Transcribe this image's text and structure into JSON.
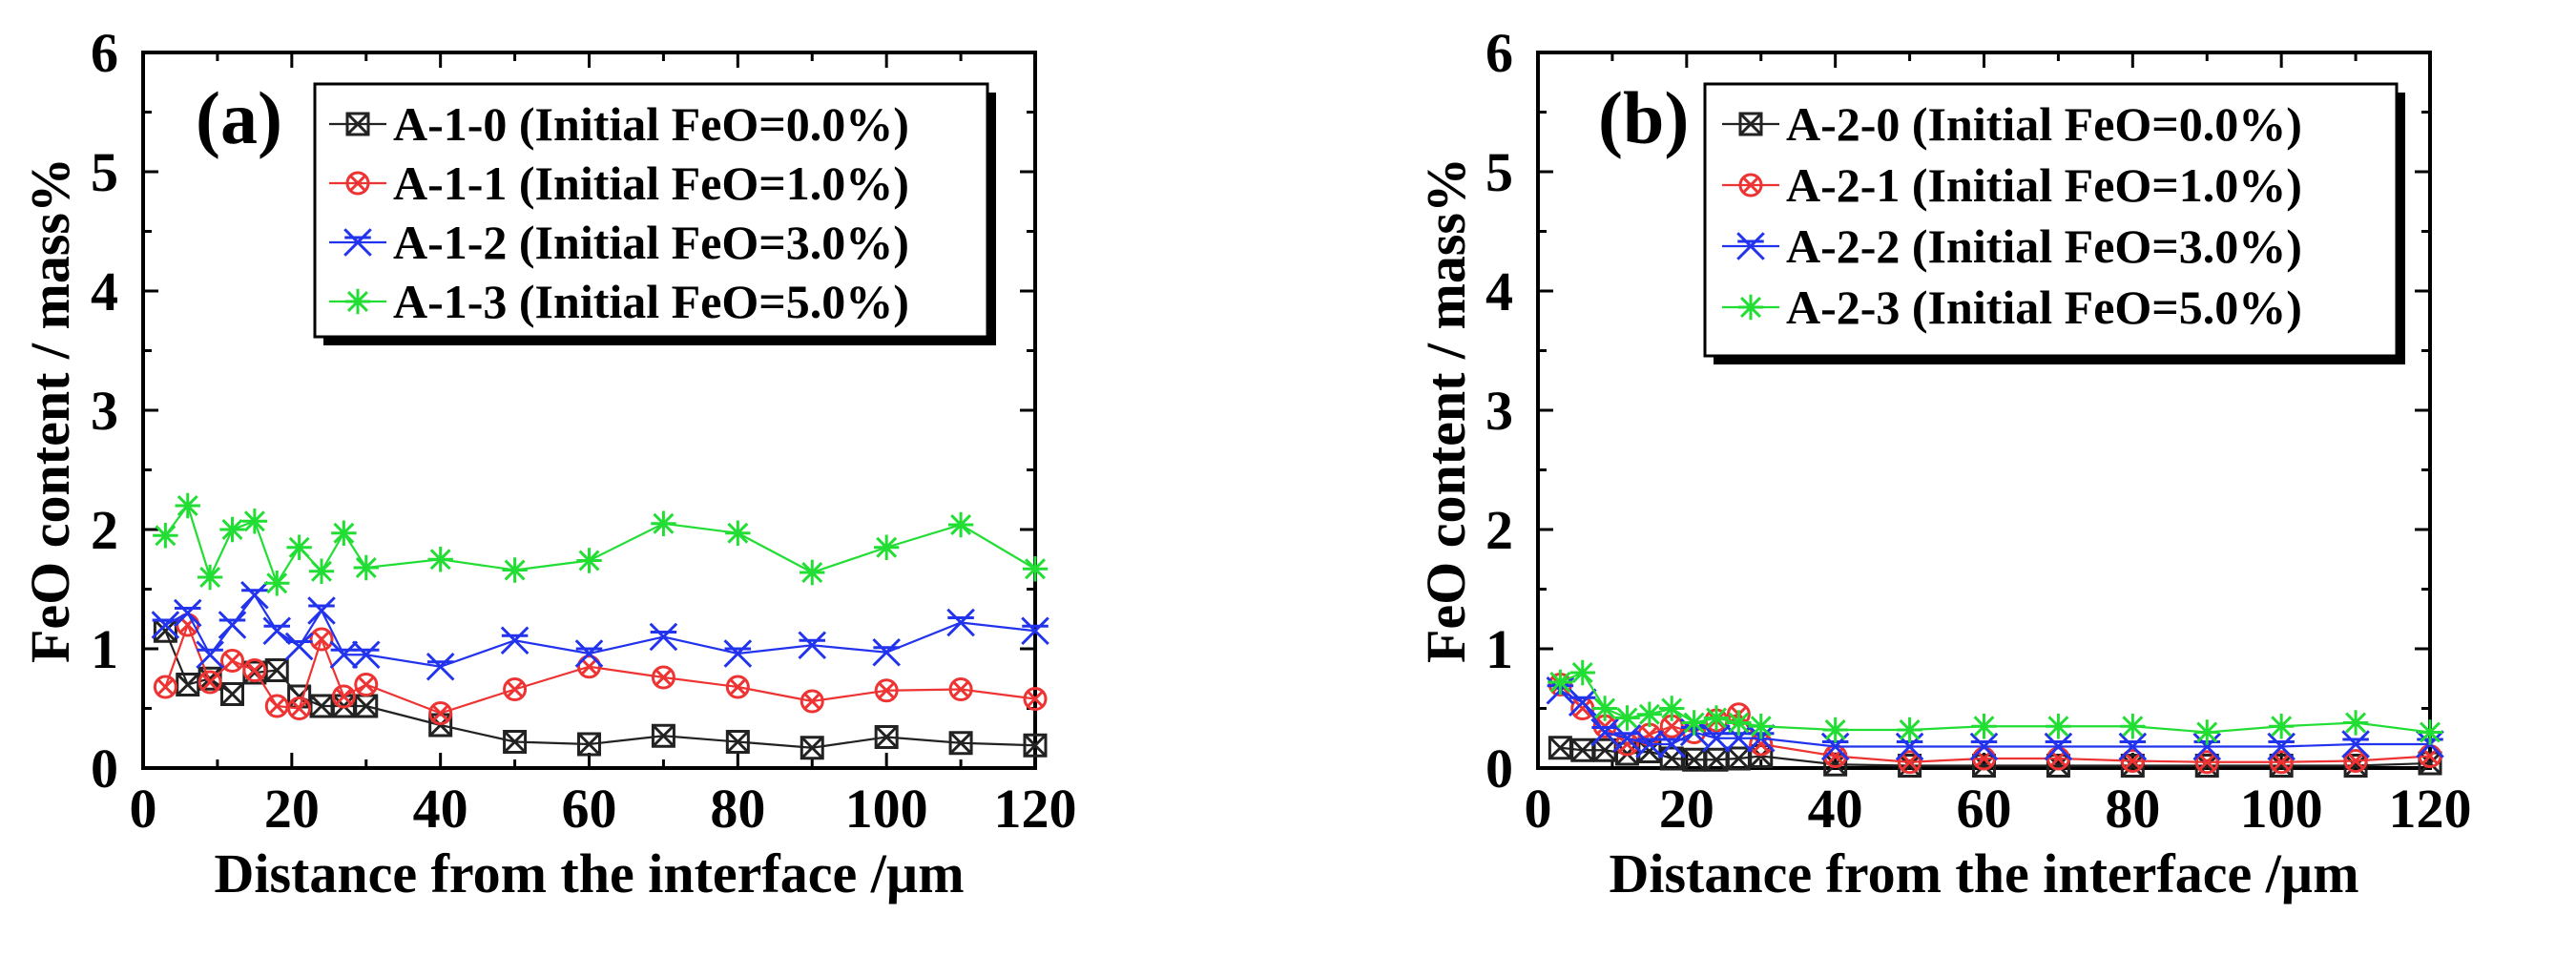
{
  "chart_data": [
    {
      "type": "line",
      "panel_label": "(a)",
      "xlabel": "Distance from the interface /µm",
      "ylabel": "FeO content / mass%",
      "xlim": [
        0,
        120
      ],
      "ylim": [
        0,
        6
      ],
      "xticks": [
        "0",
        "20",
        "40",
        "60",
        "80",
        "100",
        "120"
      ],
      "yticks": [
        "0",
        "1",
        "2",
        "3",
        "4",
        "5",
        "6"
      ],
      "legend_position": "top-right",
      "series": [
        {
          "name": "A-1-0 (Initial FeO=0.0%)",
          "color": "#222222",
          "marker": "box-x",
          "x": [
            3,
            6,
            9,
            12,
            15,
            18,
            21,
            24,
            27,
            30,
            40,
            50,
            60,
            70,
            80,
            90,
            100,
            110,
            120
          ],
          "y": [
            1.15,
            0.7,
            0.75,
            0.62,
            0.8,
            0.82,
            0.6,
            0.52,
            0.52,
            0.52,
            0.36,
            0.22,
            0.2,
            0.27,
            0.22,
            0.17,
            0.26,
            0.21,
            0.19
          ]
        },
        {
          "name": "A-1-1 (Initial FeO=1.0%)",
          "color": "#ee3333",
          "marker": "circle-x",
          "x": [
            3,
            6,
            9,
            12,
            15,
            18,
            21,
            24,
            27,
            30,
            40,
            50,
            60,
            70,
            80,
            90,
            100,
            110,
            120
          ],
          "y": [
            0.68,
            1.2,
            0.72,
            0.9,
            0.82,
            0.52,
            0.5,
            1.08,
            0.6,
            0.7,
            0.46,
            0.66,
            0.85,
            0.76,
            0.68,
            0.56,
            0.65,
            0.66,
            0.58
          ]
        },
        {
          "name": "A-1-2 (Initial FeO=3.0%)",
          "color": "#2233ee",
          "marker": "star-x",
          "x": [
            3,
            6,
            9,
            12,
            15,
            18,
            21,
            24,
            27,
            30,
            40,
            50,
            60,
            70,
            80,
            90,
            100,
            110,
            120
          ],
          "y": [
            1.2,
            1.3,
            0.95,
            1.2,
            1.45,
            1.15,
            1.02,
            1.32,
            0.95,
            0.95,
            0.85,
            1.07,
            0.96,
            1.1,
            0.96,
            1.03,
            0.97,
            1.22,
            1.15
          ]
        },
        {
          "name": "A-1-3 (Initial FeO=5.0%)",
          "color": "#22dd33",
          "marker": "asterisk",
          "x": [
            3,
            6,
            9,
            12,
            15,
            18,
            21,
            24,
            27,
            30,
            40,
            50,
            60,
            70,
            80,
            90,
            100,
            110,
            120
          ],
          "y": [
            1.95,
            2.2,
            1.6,
            2.0,
            2.07,
            1.55,
            1.85,
            1.65,
            1.97,
            1.68,
            1.75,
            1.66,
            1.74,
            2.05,
            1.97,
            1.64,
            1.85,
            2.04,
            1.67
          ]
        }
      ]
    },
    {
      "type": "line",
      "panel_label": "(b)",
      "xlabel": "Distance from the interface /µm",
      "ylabel": "FeO content / mass%",
      "xlim": [
        0,
        120
      ],
      "ylim": [
        0,
        6
      ],
      "xticks": [
        "0",
        "20",
        "40",
        "60",
        "80",
        "100",
        "120"
      ],
      "yticks": [
        "0",
        "1",
        "2",
        "3",
        "4",
        "5",
        "6"
      ],
      "legend_position": "top-right",
      "series": [
        {
          "name": "A-2-0 (Initial FeO=0.0%)",
          "color": "#222222",
          "marker": "box-x",
          "x": [
            3,
            6,
            9,
            12,
            15,
            18,
            21,
            24,
            27,
            30,
            40,
            50,
            60,
            70,
            80,
            90,
            100,
            110,
            120
          ],
          "y": [
            0.17,
            0.15,
            0.15,
            0.12,
            0.14,
            0.08,
            0.07,
            0.07,
            0.08,
            0.1,
            0.03,
            0.02,
            0.02,
            0.02,
            0.02,
            0.02,
            0.02,
            0.02,
            0.04
          ]
        },
        {
          "name": "A-2-1 (Initial FeO=1.0%)",
          "color": "#ee3333",
          "marker": "circle-x",
          "x": [
            3,
            6,
            9,
            12,
            15,
            18,
            21,
            24,
            27,
            30,
            40,
            50,
            60,
            70,
            80,
            90,
            100,
            110,
            120
          ],
          "y": [
            0.7,
            0.5,
            0.35,
            0.2,
            0.28,
            0.35,
            0.3,
            0.4,
            0.45,
            0.2,
            0.1,
            0.05,
            0.08,
            0.08,
            0.06,
            0.05,
            0.05,
            0.06,
            0.1
          ]
        },
        {
          "name": "A-2-2 (Initial FeO=3.0%)",
          "color": "#2233ee",
          "marker": "star-x",
          "x": [
            3,
            6,
            9,
            12,
            15,
            18,
            21,
            24,
            27,
            30,
            40,
            50,
            60,
            70,
            80,
            90,
            100,
            110,
            120
          ],
          "y": [
            0.65,
            0.55,
            0.3,
            0.25,
            0.2,
            0.2,
            0.3,
            0.25,
            0.25,
            0.25,
            0.18,
            0.18,
            0.18,
            0.18,
            0.18,
            0.18,
            0.18,
            0.2,
            0.2
          ]
        },
        {
          "name": "A-2-3 (Initial FeO=5.0%)",
          "color": "#22dd33",
          "marker": "asterisk",
          "x": [
            3,
            6,
            9,
            12,
            15,
            18,
            21,
            24,
            27,
            30,
            40,
            50,
            60,
            70,
            80,
            90,
            100,
            110,
            120
          ],
          "y": [
            0.72,
            0.8,
            0.5,
            0.42,
            0.45,
            0.5,
            0.38,
            0.42,
            0.38,
            0.35,
            0.32,
            0.32,
            0.35,
            0.35,
            0.35,
            0.3,
            0.35,
            0.38,
            0.3
          ]
        }
      ]
    }
  ]
}
